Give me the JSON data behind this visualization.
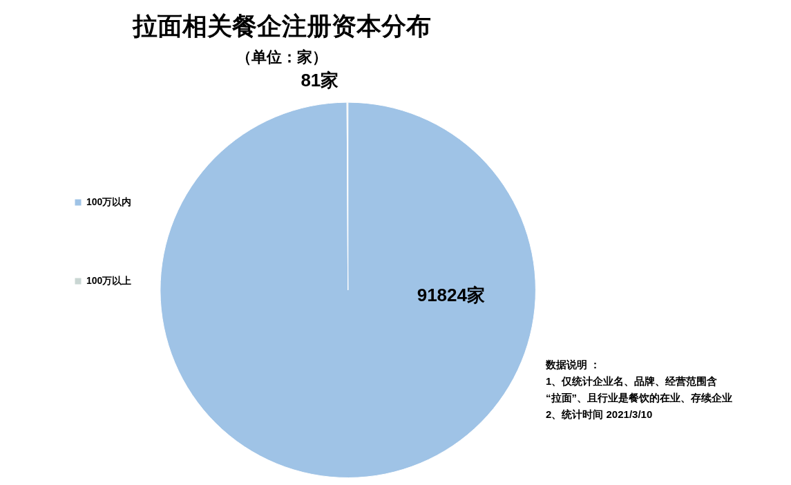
{
  "chart_data": {
    "type": "pie",
    "title": "拉面相关餐企注册资本分布",
    "subtitle": "（单位：家）",
    "categories": [
      "100万以内",
      "100万以上"
    ],
    "values": [
      91824,
      81
    ],
    "colors": [
      "#9fc3e6",
      "#c9d6d3"
    ],
    "value_labels": [
      "91824家",
      "81家"
    ],
    "legend": "left",
    "annotations": [
      "数据说明 ：",
      "1、仅统计企业名、品牌、经营范围含",
      "“拉面”、且行业是餐饮的在业、存续企业",
      "2、统计时间 2021/3/10"
    ]
  }
}
